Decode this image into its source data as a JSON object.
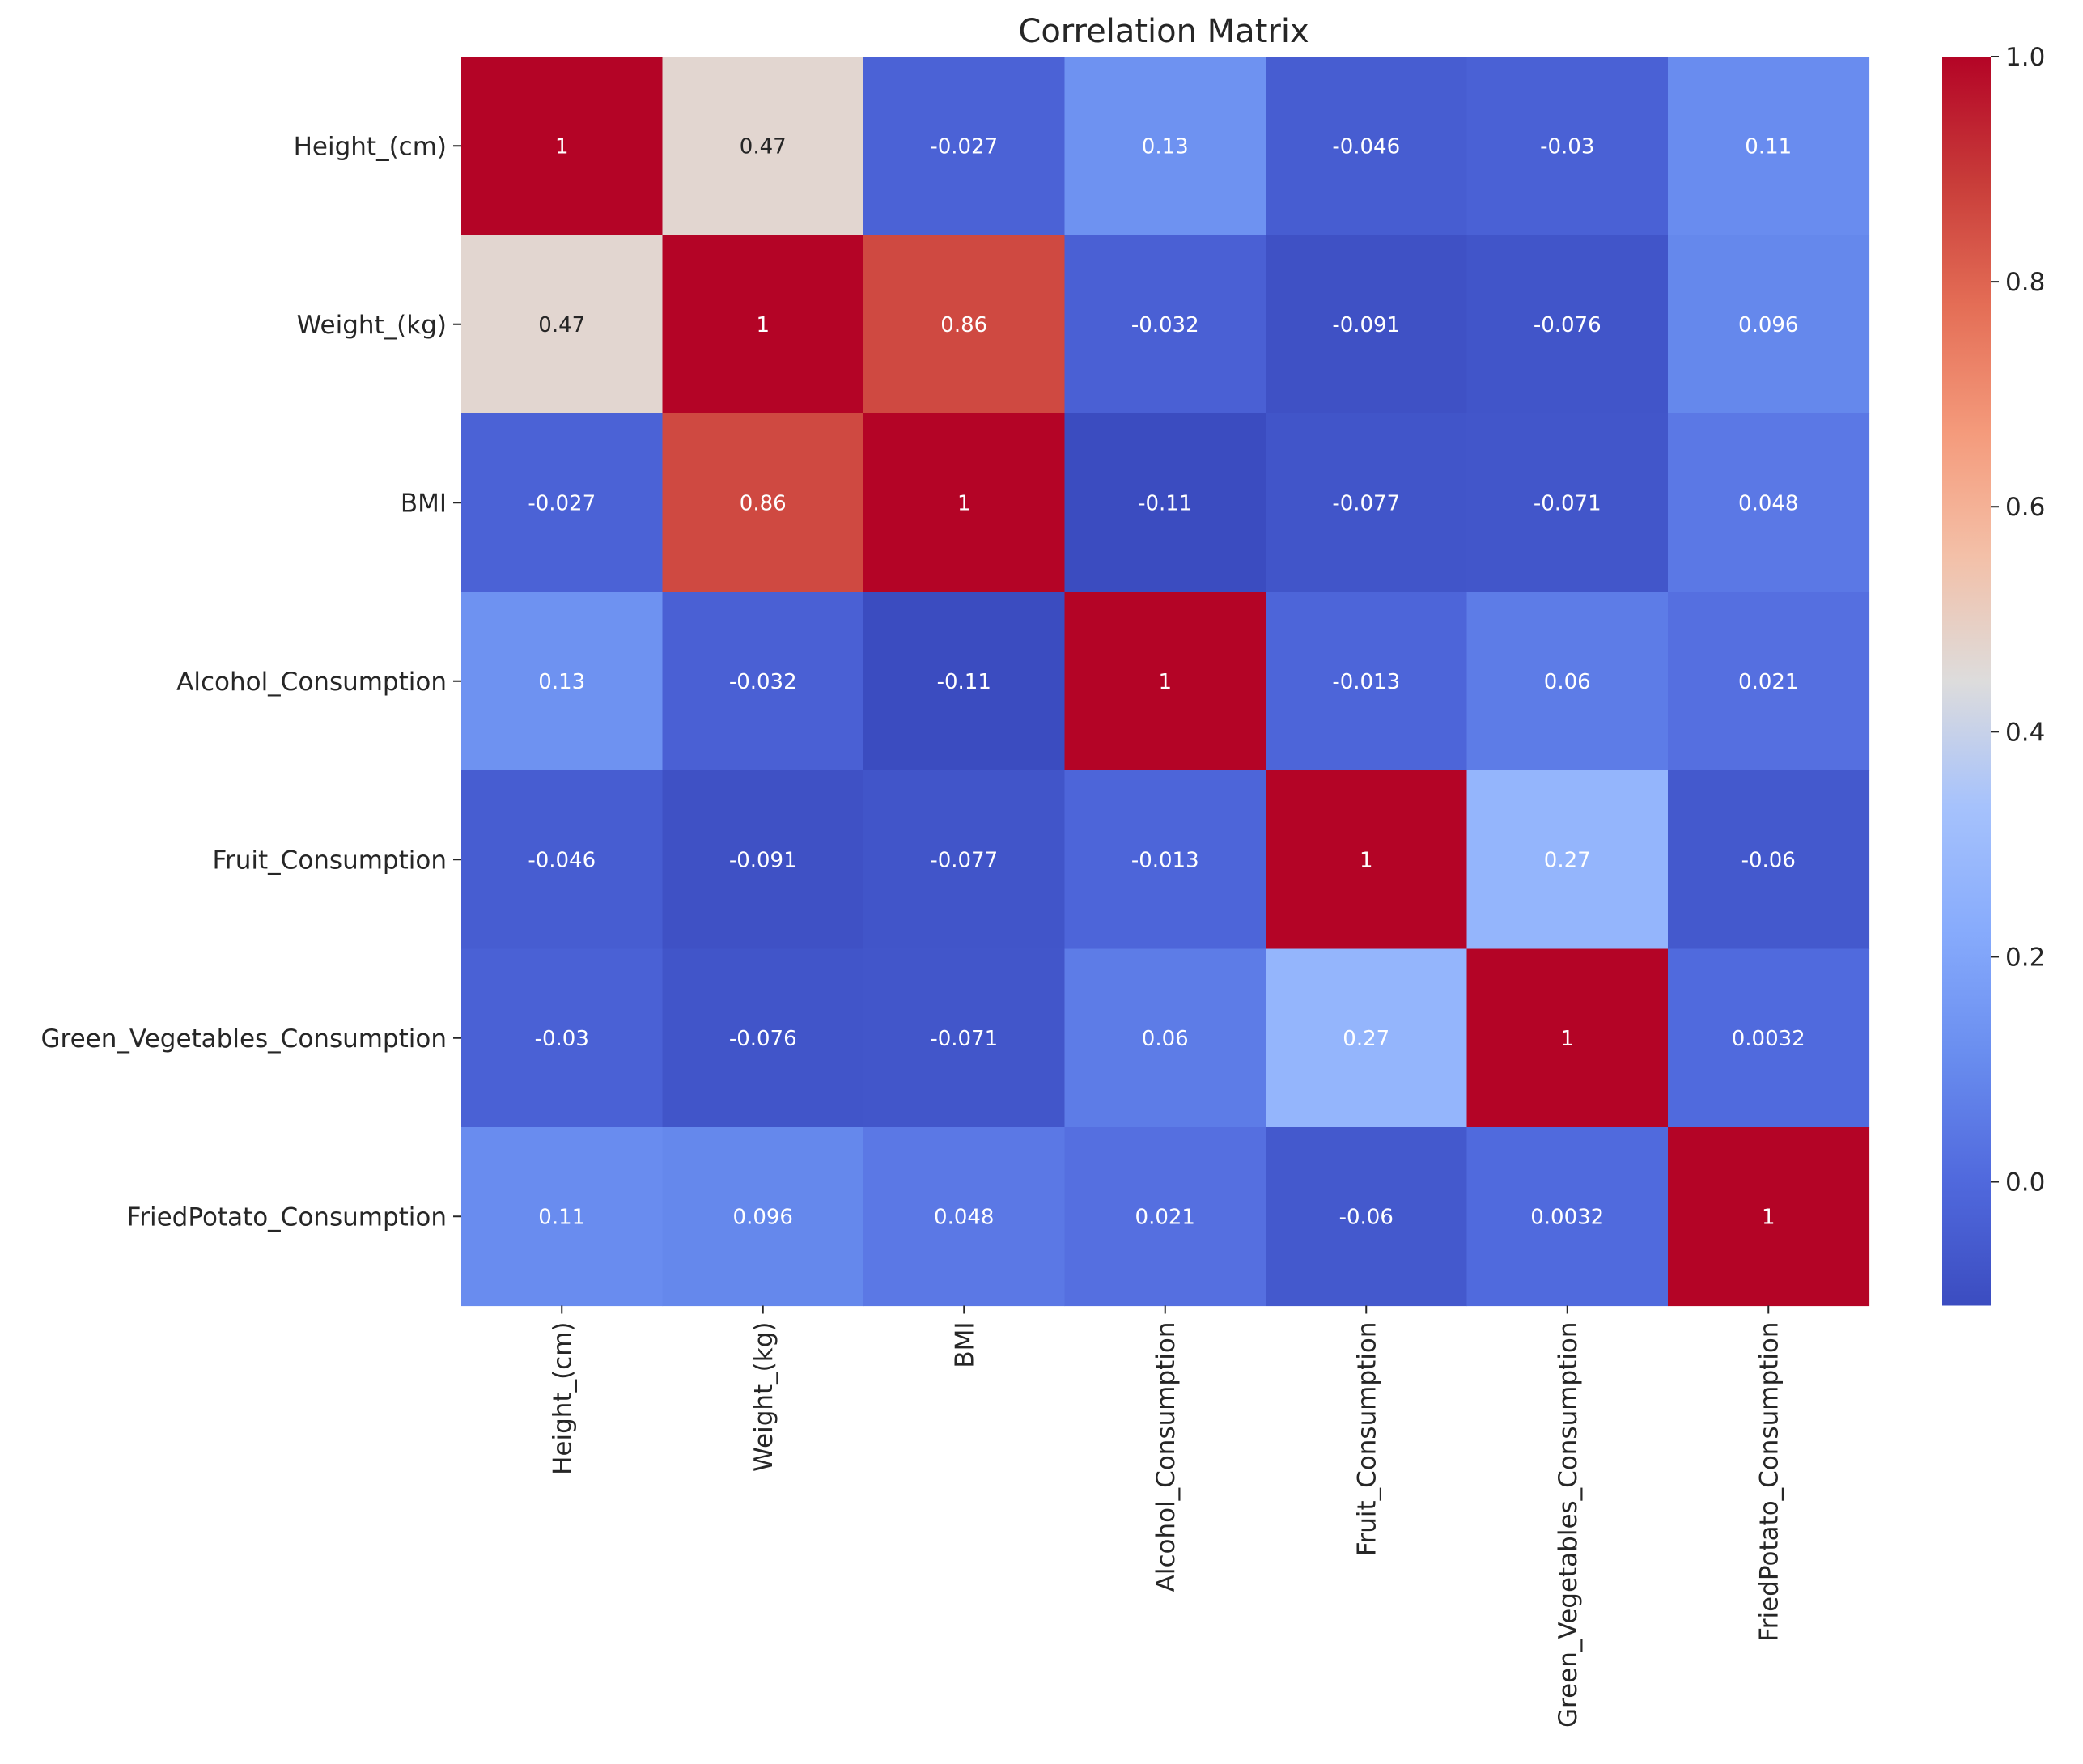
{
  "chart_data": {
    "type": "heatmap",
    "title": "Correlation Matrix",
    "xlabel": "",
    "ylabel": "",
    "colormap": "coolwarm",
    "variables": [
      "Height_(cm)",
      "Weight_(kg)",
      "BMI",
      "Alcohol_Consumption",
      "Fruit_Consumption",
      "Green_Vegetables_Consumption",
      "FriedPotato_Consumption"
    ],
    "values": [
      [
        1,
        0.47,
        -0.027,
        0.13,
        -0.046,
        -0.03,
        0.11
      ],
      [
        0.47,
        1,
        0.86,
        -0.032,
        -0.091,
        -0.076,
        0.096
      ],
      [
        -0.027,
        0.86,
        1,
        -0.11,
        -0.077,
        -0.071,
        0.048
      ],
      [
        0.13,
        -0.032,
        -0.11,
        1,
        -0.013,
        0.06,
        0.021
      ],
      [
        -0.046,
        -0.091,
        -0.077,
        -0.013,
        1,
        0.27,
        -0.06
      ],
      [
        -0.03,
        -0.076,
        -0.071,
        0.06,
        0.27,
        1,
        0.0032
      ],
      [
        0.11,
        0.096,
        0.048,
        0.021,
        -0.06,
        0.0032,
        1
      ]
    ],
    "cell_labels": [
      [
        "1",
        "0.47",
        "-0.027",
        "0.13",
        "-0.046",
        "-0.03",
        "0.11"
      ],
      [
        "0.47",
        "1",
        "0.86",
        "-0.032",
        "-0.091",
        "-0.076",
        "0.096"
      ],
      [
        "-0.027",
        "0.86",
        "1",
        "-0.11",
        "-0.077",
        "-0.071",
        "0.048"
      ],
      [
        "0.13",
        "-0.032",
        "-0.11",
        "1",
        "-0.013",
        "0.06",
        "0.021"
      ],
      [
        "-0.046",
        "-0.091",
        "-0.077",
        "-0.013",
        "1",
        "0.27",
        "-0.06"
      ],
      [
        "-0.03",
        "-0.076",
        "-0.071",
        "0.06",
        "0.27",
        "1",
        "0.0032"
      ],
      [
        "0.11",
        "0.096",
        "0.048",
        "0.021",
        "-0.06",
        "0.0032",
        "1"
      ]
    ],
    "colorbar": {
      "vmin": -0.11,
      "vmax": 1.0,
      "ticks": [
        0.0,
        0.2,
        0.4,
        0.6,
        0.8,
        1.0
      ],
      "tick_labels": [
        "0.0",
        "0.2",
        "0.4",
        "0.6",
        "0.8",
        "1.0"
      ]
    }
  }
}
